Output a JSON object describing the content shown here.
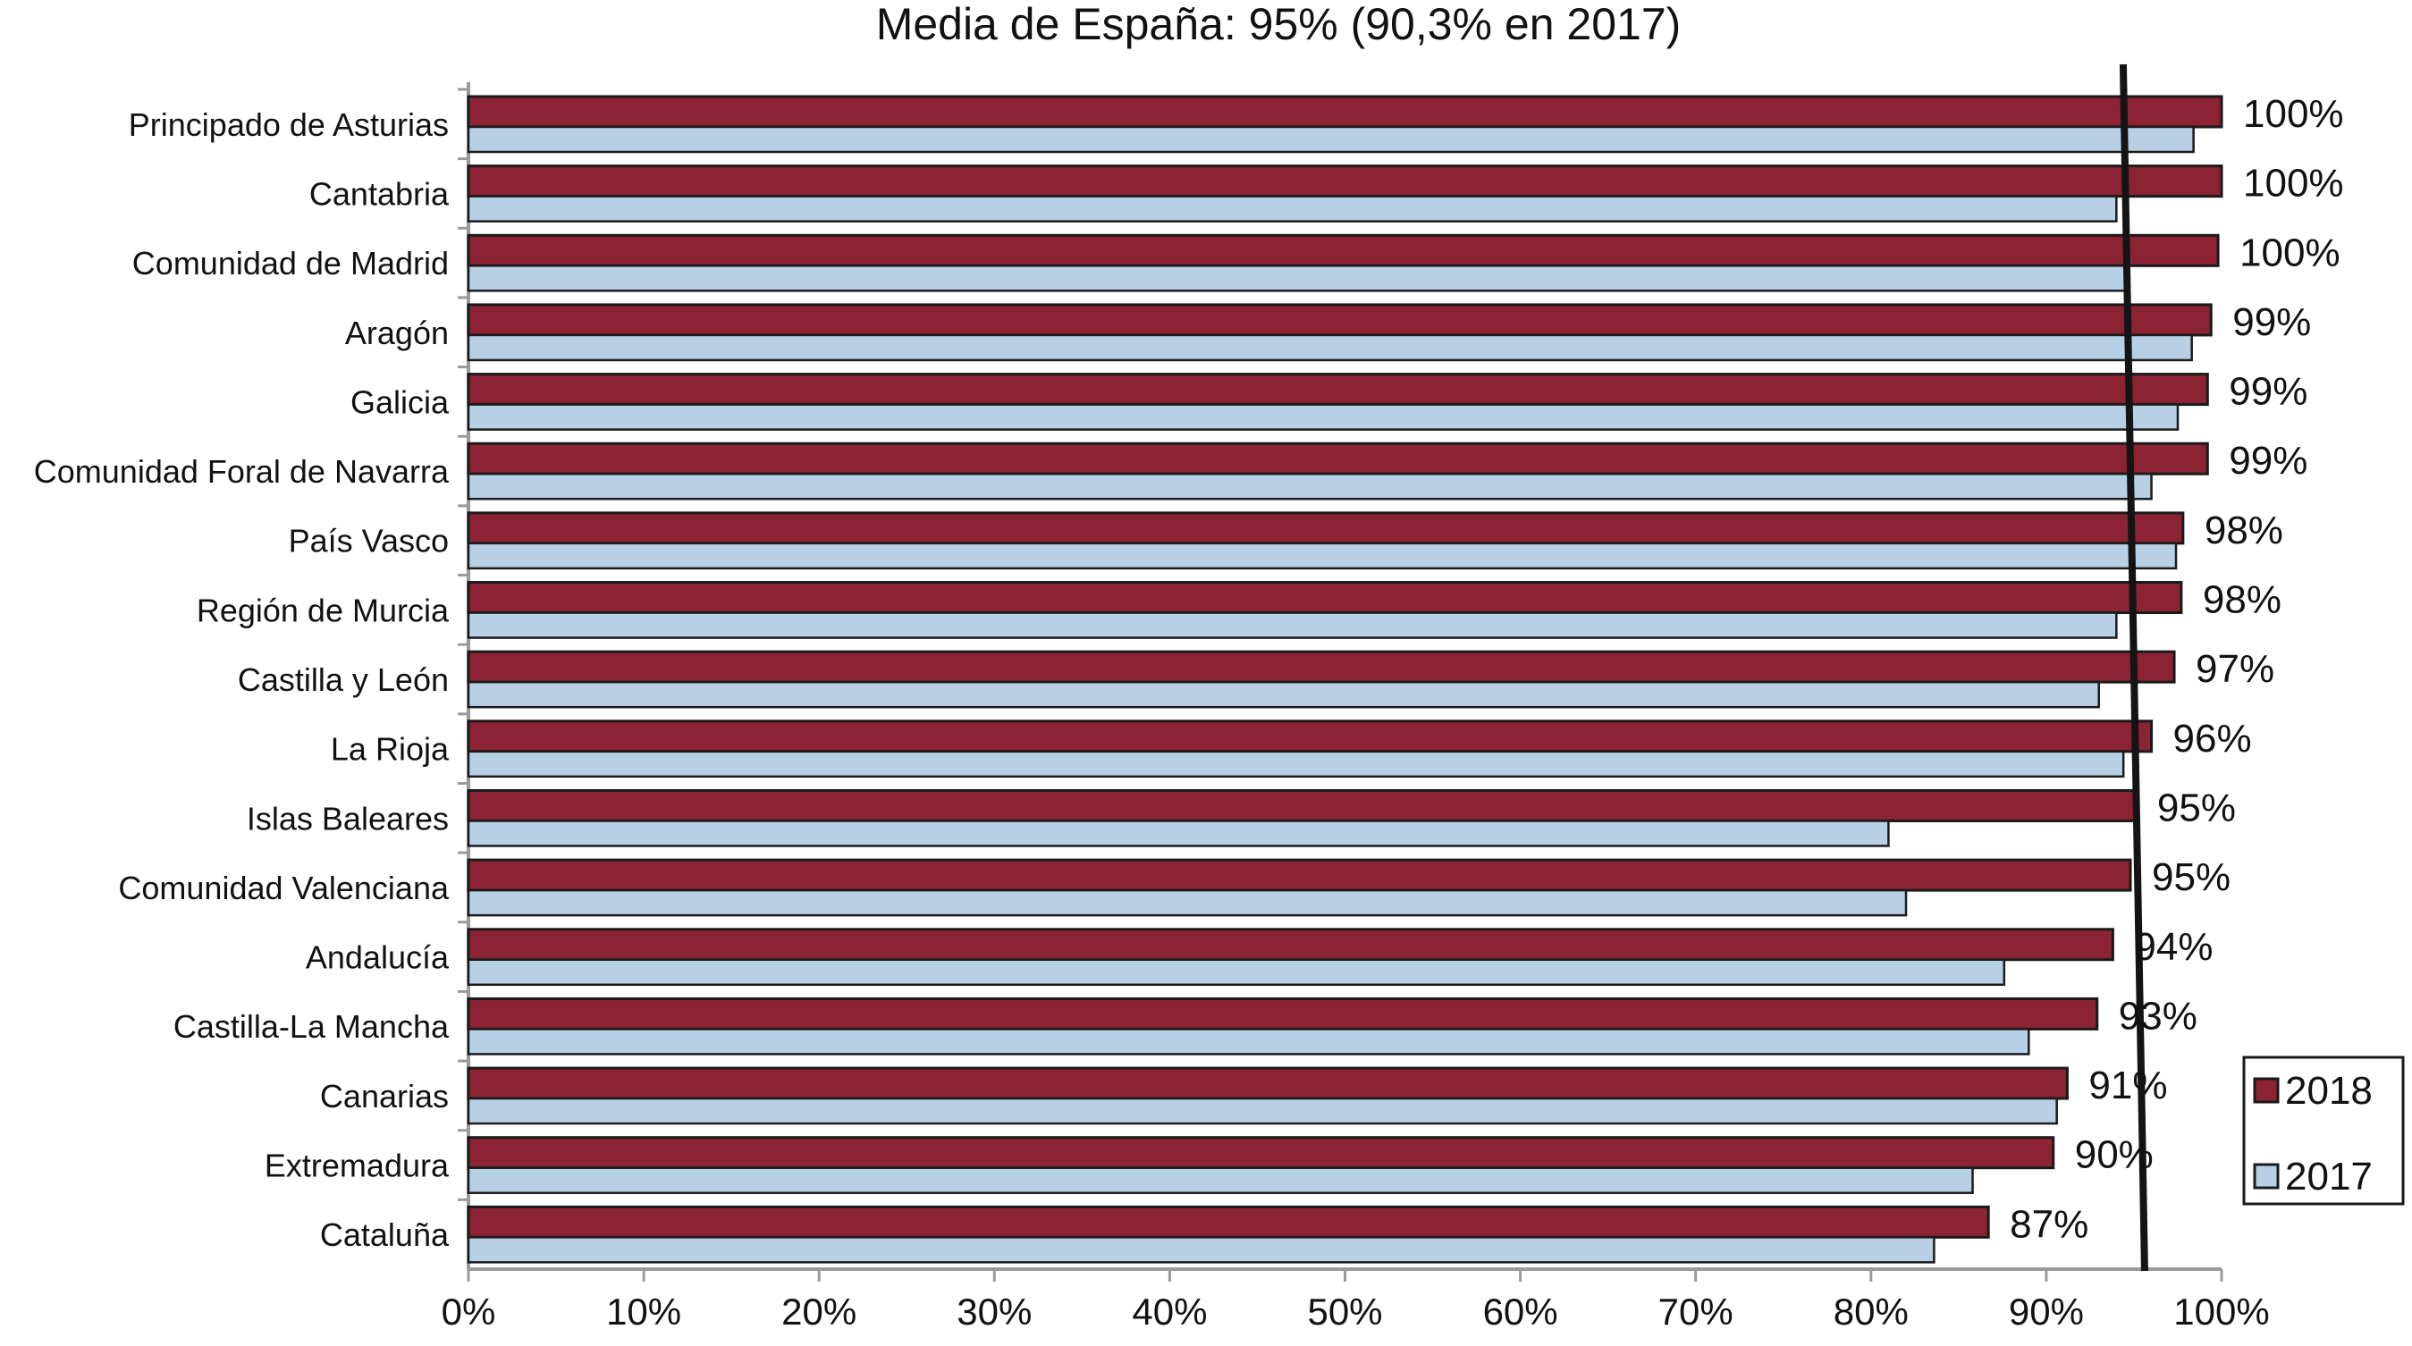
{
  "chart_data": {
    "type": "bar",
    "orientation": "horizontal",
    "title": "Media de España: 95% (90,3% en 2017)",
    "xlabel": "",
    "ylabel": "",
    "xlim": [
      0,
      100
    ],
    "x_ticks": [
      "0%",
      "10%",
      "20%",
      "30%",
      "40%",
      "50%",
      "60%",
      "70%",
      "80%",
      "90%",
      "100%"
    ],
    "categories": [
      "Principado de Asturias",
      "Cantabria",
      "Comunidad de Madrid",
      "Aragón",
      "Galicia",
      "Comunidad Foral de Navarra",
      "País Vasco",
      "Región de Murcia",
      "Castilla y León",
      "La Rioja",
      "Islas Baleares",
      "Comunidad Valenciana",
      "Andalucía",
      "Castilla-La Mancha",
      "Canarias",
      "Extremadura",
      "Cataluña"
    ],
    "series": [
      {
        "name": "2018",
        "color": "#8b2332",
        "values": [
          100,
          100,
          99.8,
          99.4,
          99.2,
          99.2,
          97.8,
          97.7,
          97.3,
          96,
          95.1,
          94.8,
          93.8,
          92.9,
          91.2,
          90.4,
          86.7
        ],
        "labels": [
          "100%",
          "100%",
          "100%",
          "99%",
          "99%",
          "99%",
          "98%",
          "98%",
          "97%",
          "96%",
          "95%",
          "95%",
          "94%",
          "93%",
          "91%",
          "90%",
          "87%"
        ]
      },
      {
        "name": "2017",
        "color": "#b8d0e6",
        "values": [
          98.4,
          94,
          94.5,
          98.3,
          97.5,
          96,
          97.4,
          94,
          93,
          94.4,
          81,
          82,
          87.6,
          89,
          90.6,
          85.8,
          83.6
        ]
      }
    ],
    "reference_line": {
      "value": 95
    },
    "legend": {
      "position": "bottom-right"
    },
    "grid": false
  }
}
